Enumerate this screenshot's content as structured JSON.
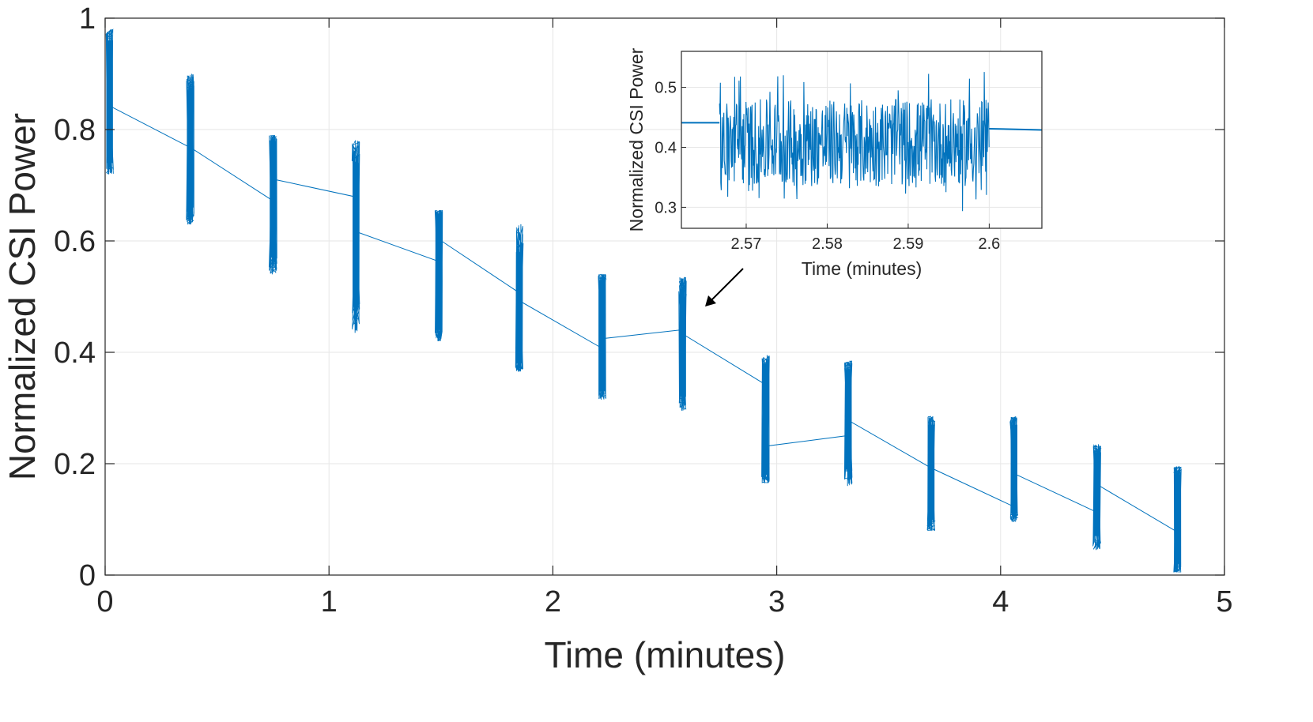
{
  "chart_data": {
    "type": "line",
    "main": {
      "xlabel": "Time (minutes)",
      "ylabel": "Normalized CSI Power",
      "xlim": [
        0,
        5
      ],
      "ylim": [
        0,
        1
      ],
      "xticks": [
        "0",
        "1",
        "2",
        "3",
        "4",
        "5"
      ],
      "yticks": [
        "0",
        "0.2",
        "0.4",
        "0.6",
        "0.8",
        "1"
      ],
      "grid": true,
      "line_color": "#0072bd",
      "bursts": [
        {
          "x": 0.02,
          "start": 0.88,
          "end": 0.84,
          "min": 0.72,
          "max": 0.98,
          "core_min": 0.74,
          "core_max": 0.96
        },
        {
          "x": 0.38,
          "start": 0.77,
          "end": 0.765,
          "min": 0.63,
          "max": 0.9,
          "core_min": 0.66,
          "core_max": 0.87
        },
        {
          "x": 0.75,
          "start": 0.675,
          "end": 0.71,
          "min": 0.54,
          "max": 0.79,
          "core_min": 0.57,
          "core_max": 0.78
        },
        {
          "x": 1.12,
          "start": 0.68,
          "end": 0.615,
          "min": 0.435,
          "max": 0.78,
          "core_min": 0.49,
          "core_max": 0.74
        },
        {
          "x": 1.49,
          "start": 0.565,
          "end": 0.6,
          "min": 0.42,
          "max": 0.655,
          "core_min": 0.44,
          "core_max": 0.65
        },
        {
          "x": 1.85,
          "start": 0.51,
          "end": 0.49,
          "min": 0.365,
          "max": 0.63,
          "core_min": 0.38,
          "core_max": 0.58
        },
        {
          "x": 2.22,
          "start": 0.41,
          "end": 0.425,
          "min": 0.315,
          "max": 0.54,
          "core_min": 0.33,
          "core_max": 0.53
        },
        {
          "x": 2.58,
          "start": 0.44,
          "end": 0.43,
          "min": 0.295,
          "max": 0.535,
          "core_min": 0.32,
          "core_max": 0.5
        },
        {
          "x": 2.95,
          "start": 0.345,
          "end": 0.232,
          "min": 0.165,
          "max": 0.395,
          "core_min": 0.18,
          "core_max": 0.38
        },
        {
          "x": 3.32,
          "start": 0.25,
          "end": 0.275,
          "min": 0.16,
          "max": 0.385,
          "core_min": 0.19,
          "core_max": 0.37
        },
        {
          "x": 3.69,
          "start": 0.195,
          "end": 0.19,
          "min": 0.08,
          "max": 0.285,
          "core_min": 0.1,
          "core_max": 0.27
        },
        {
          "x": 4.06,
          "start": 0.125,
          "end": 0.18,
          "min": 0.095,
          "max": 0.285,
          "core_min": 0.11,
          "core_max": 0.27
        },
        {
          "x": 4.43,
          "start": 0.115,
          "end": 0.16,
          "min": 0.045,
          "max": 0.235,
          "core_min": 0.07,
          "core_max": 0.22
        },
        {
          "x": 4.79,
          "start": 0.08,
          "end": 0.075,
          "min": 0.005,
          "max": 0.195,
          "core_min": 0.02,
          "core_max": 0.18
        }
      ]
    },
    "inset": {
      "xlabel": "Time (minutes)",
      "ylabel": "Normalized CSI Power",
      "xlim": [
        2.562,
        2.6065
      ],
      "ylim": [
        0.265,
        0.56
      ],
      "xticks": [
        {
          "value": 2.57,
          "label": "2.57"
        },
        {
          "value": 2.58,
          "label": "2.58"
        },
        {
          "value": 2.59,
          "label": "2.59"
        },
        {
          "value": 2.6,
          "label": "2.6"
        }
      ],
      "yticks": [
        {
          "value": 0.3,
          "label": "0.3"
        },
        {
          "value": 0.4,
          "label": "0.4"
        },
        {
          "value": 0.5,
          "label": "0.5"
        }
      ],
      "grid": true,
      "line_color": "#0072bd",
      "lead": {
        "x_start": 2.562,
        "x_end": 2.5667,
        "y_start": 0.441,
        "y_end": 0.441
      },
      "noise": {
        "x_start": 2.5667,
        "x_end": 2.6,
        "mean": 0.415,
        "core_min": 0.335,
        "core_max": 0.48,
        "peak_max": 0.538,
        "peak_min": 0.293
      },
      "tail": {
        "x_start": 2.6,
        "x_end": 2.6065,
        "y_start": 0.431,
        "y_end": 0.429
      }
    },
    "annotation": {
      "type": "arrow",
      "points_to_x": 2.58,
      "points_to_y": 0.48
    }
  }
}
